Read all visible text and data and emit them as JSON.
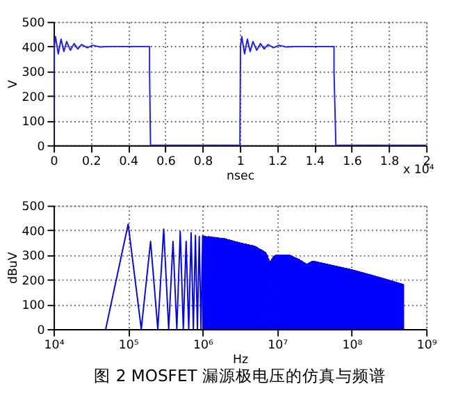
{
  "chart_data": [
    {
      "type": "line",
      "xlabel": "nsec",
      "ylabel": "V",
      "xlim": [
        0,
        2
      ],
      "ylim": [
        0,
        500
      ],
      "xticks": [
        0,
        0.2,
        0.4,
        0.6,
        0.8,
        1,
        1.2,
        1.4,
        1.6,
        1.8,
        2
      ],
      "yticks": [
        0,
        100,
        200,
        300,
        400,
        500
      ],
      "grid": true,
      "annotations": [
        "x 10⁴"
      ],
      "series": [
        {
          "color": "#1a1aff",
          "x": [
            0,
            0.003,
            0.01,
            0.025,
            0.04,
            0.055,
            0.07,
            0.09,
            0.11,
            0.13,
            0.15,
            0.18,
            0.21,
            0.25,
            0.3,
            0.515,
            0.515,
            0.52,
            1.0,
            1.003,
            1.01,
            1.025,
            1.04,
            1.055,
            1.07,
            1.09,
            1.11,
            1.13,
            1.15,
            1.18,
            1.21,
            1.25,
            1.3,
            1.505,
            1.505,
            1.515,
            2
          ],
          "values": [
            0,
            400,
            440,
            370,
            430,
            380,
            420,
            385,
            412,
            390,
            408,
            395,
            405,
            398,
            400,
            400,
            300,
            0,
            0,
            400,
            440,
            370,
            430,
            380,
            420,
            385,
            412,
            390,
            408,
            395,
            405,
            398,
            400,
            400,
            300,
            0,
            0
          ]
        }
      ]
    },
    {
      "type": "line",
      "xlabel": "Hz",
      "ylabel": "dBuV",
      "log": "x",
      "xlim": [
        10000,
        1000000000
      ],
      "ylim": [
        0,
        500
      ],
      "xticks": [
        {
          "value": 10000,
          "label": "10⁴"
        },
        {
          "value": 100000,
          "label": "10⁵"
        },
        {
          "value": 1000000,
          "label": "10⁶"
        },
        {
          "value": 10000000,
          "label": "10⁷"
        },
        {
          "value": 100000000,
          "label": "10⁸"
        },
        {
          "value": 1000000000,
          "label": "10⁹"
        }
      ],
      "yticks": [
        0,
        100,
        200,
        300,
        400,
        500
      ],
      "grid": true,
      "annotations": [
        "图 2 MOSFET 漏源极电压的仿真与频谱"
      ],
      "series": [
        {
          "color": "#0000ff",
          "x": [
            50000,
            100000,
            150000,
            200000,
            250000,
            300000,
            350000,
            400000,
            450000,
            500000,
            550000,
            600000,
            650000,
            700000,
            750000,
            800000,
            850000,
            900000,
            950000,
            1000000,
            1050000,
            1100000,
            1150000,
            1200000,
            1250000,
            1300000,
            1350000,
            1400000,
            1450000,
            1500000,
            1550000,
            1600000,
            1650000,
            1700000,
            1750000,
            1800000,
            1850000,
            1900000,
            1950000,
            2000000
          ],
          "values": [
            0,
            425,
            0,
            355,
            0,
            405,
            0,
            355,
            0,
            395,
            0,
            355,
            0,
            390,
            0,
            380,
            0,
            375,
            0,
            378,
            0,
            372,
            0,
            375,
            0,
            370,
            0,
            372,
            0,
            370,
            0,
            368,
            0,
            368,
            0,
            366,
            0,
            366,
            0,
            365
          ]
        },
        {
          "type": "area",
          "color": "#0000ff",
          "x": [
            1000000,
            2000000,
            3000000,
            5000000,
            7000000,
            8000000,
            9000000,
            10000000,
            15000000,
            20000000,
            25000000,
            30000000,
            50000000,
            100000000,
            200000000,
            300000000,
            500000000,
            500000000
          ],
          "values": [
            375,
            365,
            350,
            335,
            310,
            270,
            295,
            300,
            298,
            280,
            262,
            275,
            260,
            240,
            215,
            200,
            180,
            0
          ]
        }
      ]
    }
  ]
}
